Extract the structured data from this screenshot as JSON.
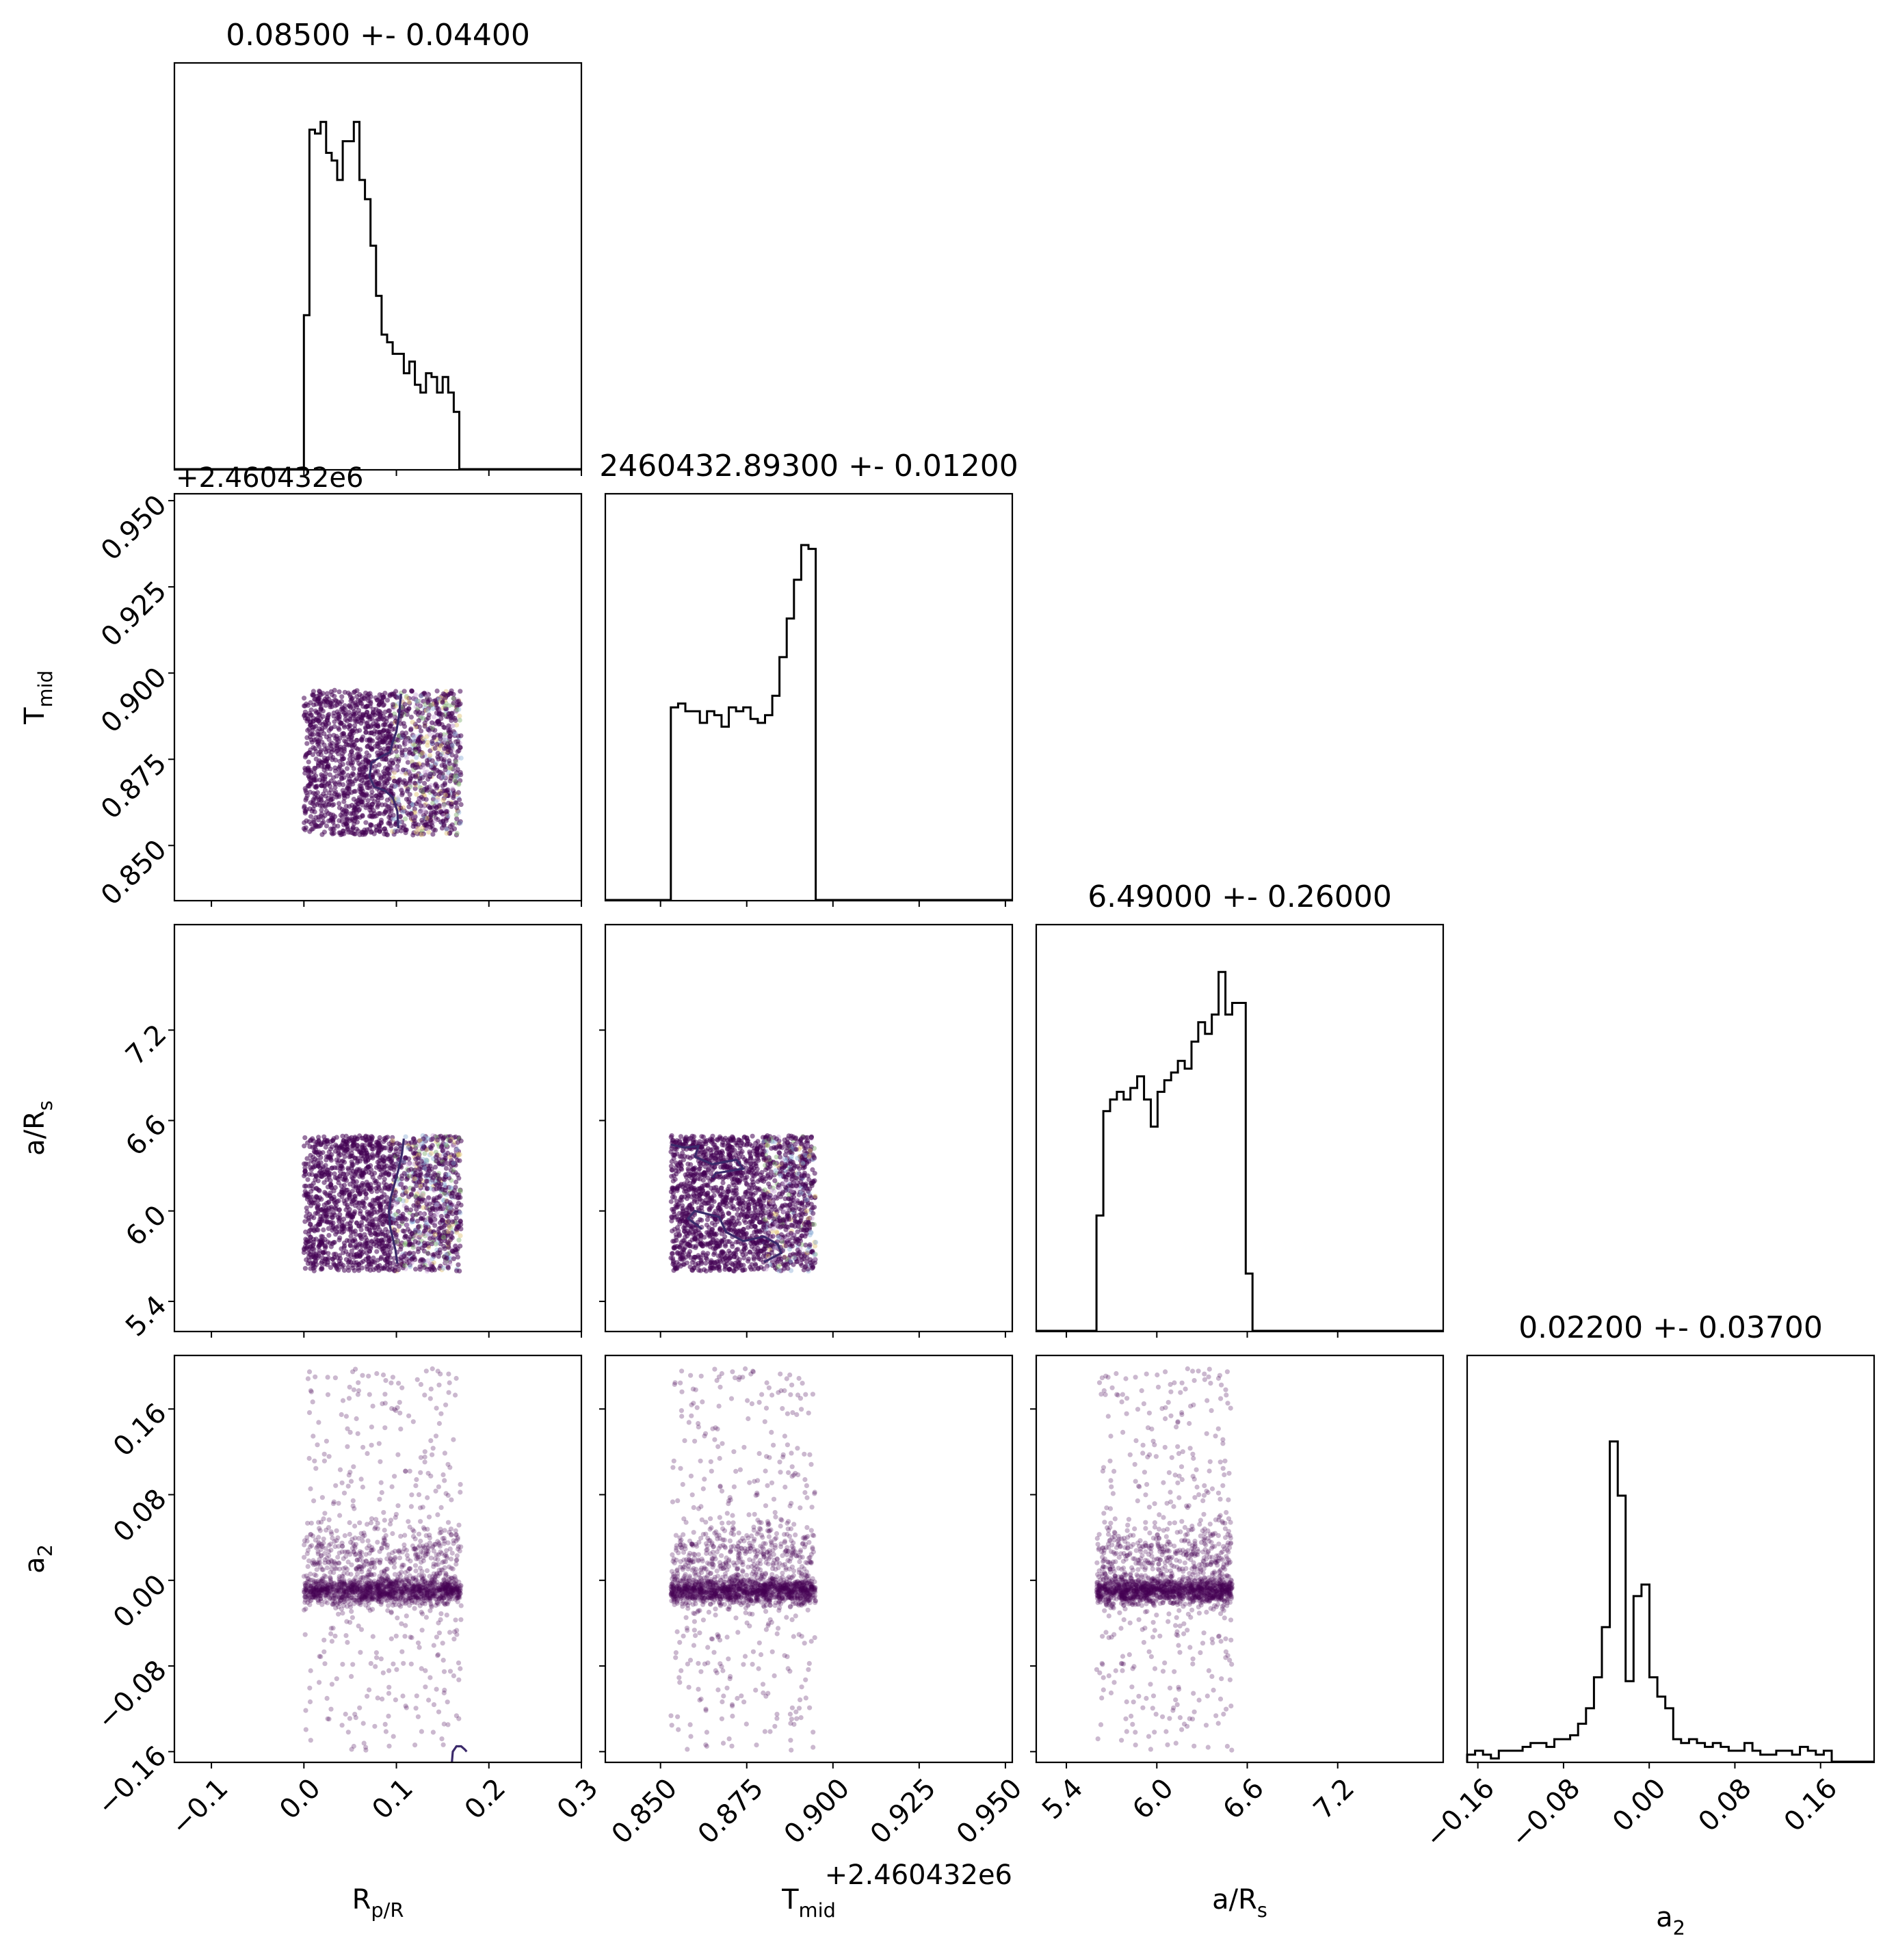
{
  "chart_data": {
    "type": "scatter",
    "subtype": "corner-plot",
    "parameters": [
      {
        "key": "rprs",
        "axis_label": "R_p/R_s",
        "title": "0.08500 +- 0.04400",
        "range": [
          -0.14,
          0.3
        ],
        "ticks": [
          -0.1,
          0.0,
          0.1,
          0.2,
          0.3
        ],
        "tick_labels": [
          "−0.1",
          "0.0",
          "0.1",
          "0.2",
          "0.3"
        ],
        "sample_range": [
          0.0,
          0.17
        ],
        "hist": {
          "edges_start": 0.0,
          "bin_width": 0.006,
          "counts": [
            0.4,
            0.88,
            0.87,
            0.9,
            0.82,
            0.8,
            0.75,
            0.85,
            0.85,
            0.9,
            0.75,
            0.7,
            0.58,
            0.45,
            0.35,
            0.33,
            0.3,
            0.3,
            0.25,
            0.28,
            0.22,
            0.2,
            0.25,
            0.24,
            0.2,
            0.24,
            0.2,
            0.15
          ]
        }
      },
      {
        "key": "tmid",
        "axis_label": "T_mid",
        "title": "2460432.89300 +- 0.01200",
        "offset_label": "+2.460432e6",
        "range": [
          0.834,
          0.952
        ],
        "ticks": [
          0.85,
          0.875,
          0.9,
          0.925,
          0.95
        ],
        "tick_labels": [
          "0.850",
          "0.875",
          "0.900",
          "0.925",
          "0.950"
        ],
        "sample_range": [
          0.853,
          0.895
        ],
        "hist": {
          "edges_start": 0.853,
          "bin_width": 0.0021,
          "counts": [
            0.5,
            0.51,
            0.49,
            0.49,
            0.46,
            0.49,
            0.48,
            0.45,
            0.5,
            0.49,
            0.5,
            0.47,
            0.46,
            0.48,
            0.53,
            0.63,
            0.73,
            0.83,
            0.92,
            0.91
          ]
        }
      },
      {
        "key": "ars",
        "axis_label": "a/R_s",
        "title": "6.49000 +- 0.26000",
        "range": [
          5.2,
          7.9
        ],
        "ticks": [
          5.4,
          6.0,
          6.6,
          7.2
        ],
        "tick_labels": [
          "5.4",
          "6.0",
          "6.6",
          "7.2"
        ],
        "sample_range": [
          5.6,
          6.5
        ],
        "hist": {
          "edges_start": 5.6,
          "bin_width": 0.045,
          "counts": [
            0.3,
            0.57,
            0.6,
            0.62,
            0.6,
            0.63,
            0.66,
            0.6,
            0.53,
            0.62,
            0.65,
            0.67,
            0.7,
            0.68,
            0.75,
            0.8,
            0.77,
            0.82,
            0.93,
            0.82,
            0.85,
            0.85,
            0.15
          ]
        }
      },
      {
        "key": "a2",
        "axis_label": "a_2",
        "title": "0.02200 +- 0.03700",
        "range": [
          -0.17,
          0.21
        ],
        "ticks": [
          -0.16,
          -0.08,
          0.0,
          0.08,
          0.16
        ],
        "tick_labels": [
          "−0.16",
          "−0.08",
          "0.00",
          "0.08",
          "0.16"
        ],
        "sample_range": [
          -0.16,
          0.2
        ],
        "hist": {
          "edges_start": -0.17,
          "bin_width": 0.0074,
          "counts": [
            0.02,
            0.03,
            0.02,
            0.01,
            0.03,
            0.03,
            0.03,
            0.04,
            0.05,
            0.05,
            0.04,
            0.06,
            0.06,
            0.07,
            0.1,
            0.14,
            0.22,
            0.35,
            0.83,
            0.69,
            0.21,
            0.43,
            0.46,
            0.22,
            0.17,
            0.14,
            0.06,
            0.05,
            0.06,
            0.05,
            0.04,
            0.05,
            0.04,
            0.03,
            0.03,
            0.05,
            0.03,
            0.02,
            0.02,
            0.03,
            0.03,
            0.02,
            0.04,
            0.03,
            0.02,
            0.03
          ]
        }
      }
    ],
    "colors": {
      "scatter": "#440154",
      "contour": "#3b2a6b",
      "hist": "#000000"
    }
  }
}
